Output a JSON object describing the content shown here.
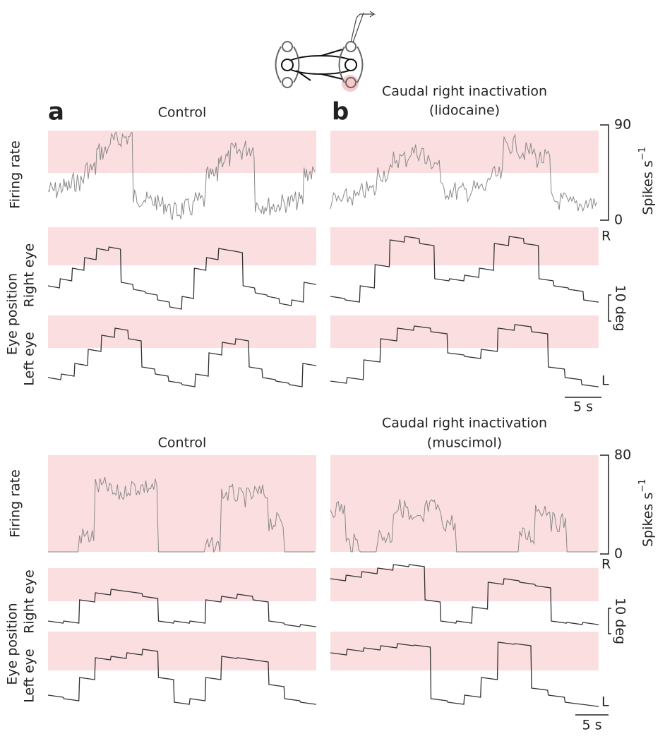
{
  "panel_labels": {
    "a": "a",
    "b": "b"
  },
  "sections": [
    {
      "left_title": "Control",
      "right_title": [
        "Caudal right inactivation",
        "(lidocaine)"
      ],
      "rate_scale": {
        "max": 90,
        "min": 0
      }
    },
    {
      "left_title": "Control",
      "right_title": [
        "Caudal right inactivation",
        "(muscimol)"
      ],
      "rate_scale": {
        "max": 80,
        "min": 0
      }
    }
  ],
  "row_labels": {
    "firing_rate": "Firing rate",
    "eye_position": "Eye position",
    "right_eye": "Right eye",
    "left_eye": "Left eye"
  },
  "units": {
    "spikes": "Spikes s",
    "spikes_exp": "−1",
    "deg": "10 deg",
    "time": "5 s",
    "right": "R",
    "left": "L"
  }
}
